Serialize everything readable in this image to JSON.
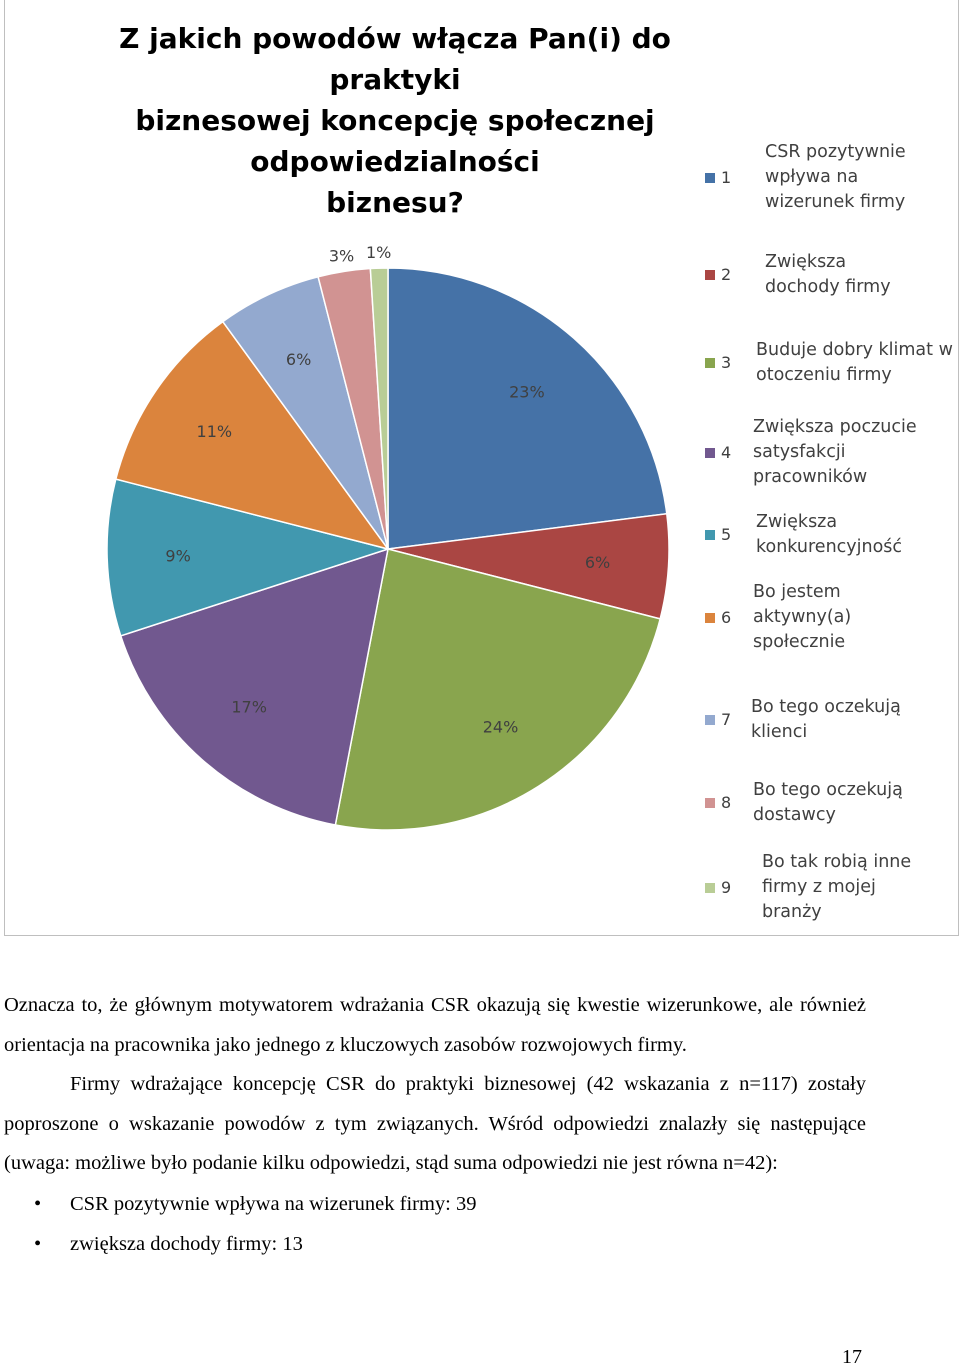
{
  "chart_data": {
    "type": "pie",
    "title": "Z jakich powodów włącza Pan(i) do praktyki biznesowej koncepcję społecznej odpowiedzialności biznesu?",
    "title_lines": [
      "Z jakich powodów włącza Pan(i) do praktyki",
      "biznesowej koncepcję społecznej odpowiedzialności",
      "biznesu?"
    ],
    "legend_placement": "right",
    "slices": [
      {
        "num": "1",
        "label": "CSR pozytywnie\nwpływa na\nwizerunek firmy",
        "value": 23,
        "value_label": "23%",
        "color": "#4572A7"
      },
      {
        "num": "2",
        "label": "Zwiększa\ndochody firmy",
        "value": 6,
        "value_label": "6%",
        "color": "#AA4643"
      },
      {
        "num": "3",
        "label": "Buduje dobry klimat w\notoczeniu firmy",
        "value": 24,
        "value_label": "24%",
        "color": "#89A54E"
      },
      {
        "num": "4",
        "label": "Zwiększa poczucie\nsatysfakcji\npracowników",
        "value": 17,
        "value_label": "17%",
        "color": "#71588F"
      },
      {
        "num": "5",
        "label": "Zwiększa\nkonkurencyjność",
        "value": 9,
        "value_label": "9%",
        "color": "#4198AF"
      },
      {
        "num": "6",
        "label": "Bo jestem\naktywny(a)\nspołecznie",
        "value": 11,
        "value_label": "11%",
        "color": "#DB843D"
      },
      {
        "num": "7",
        "label": "Bo tego oczekują\nklienci",
        "value": 6,
        "value_label": "6%",
        "color": "#93A9CF"
      },
      {
        "num": "8",
        "label": "Bo tego oczekują\ndostawcy",
        "value": 3,
        "value_label": "3%",
        "color": "#D19392"
      },
      {
        "num": "9",
        "label": "Bo tak robią inne\nfirmy z mojej\nbranży",
        "value": 1,
        "value_label": "1%",
        "color": "#B9CD96"
      }
    ]
  },
  "text": {
    "p1": "Oznacza to, że głównym motywatorem wdrażania CSR okazują się kwestie wizerunkowe, ale również orientacja na pracownika jako jednego z kluczowych zasobów rozwojowych firmy.",
    "p2": "Firmy wdrażające koncepcję CSR do praktyki biznesowej (42 wskazania z n=117) zostały poproszone o wskazanie powodów z tym związanych. Wśród odpowiedzi znalazły się następujące (uwaga: możliwe było podanie kilku odpowiedzi, stąd suma odpowiedzi nie jest równa n=42):",
    "bullets": [
      "CSR pozytywnie wpływa na wizerunek firmy: 39",
      "zwiększa dochody firmy: 13"
    ],
    "bullet_symbol": "•"
  },
  "page_number": "17"
}
